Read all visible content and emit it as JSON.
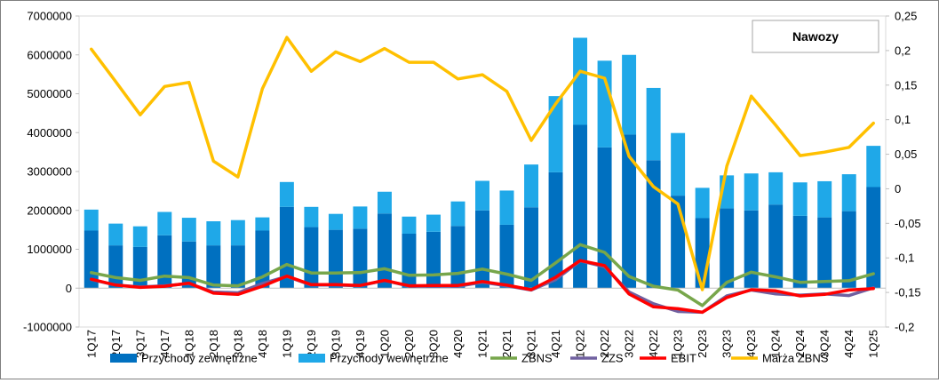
{
  "chart_data": {
    "type": "bar",
    "title": "Nawozy",
    "categories": [
      "1Q17",
      "2Q17",
      "3Q17",
      "4Q17",
      "1Q18",
      "2Q18",
      "3Q18",
      "4Q18",
      "1Q19",
      "2Q19",
      "3Q19",
      "4Q19",
      "1Q20",
      "2Q20",
      "3Q20",
      "4Q20",
      "1Q21",
      "2Q21",
      "3Q21",
      "4Q21",
      "1Q22",
      "2Q22",
      "3Q22",
      "4Q22",
      "1Q23",
      "2Q23",
      "3Q23",
      "4Q23",
      "1Q24",
      "2Q24",
      "3Q24",
      "4Q24",
      "1Q25"
    ],
    "y_left": {
      "min": -1000000,
      "max": 7000000,
      "ticks": [
        "-1000000",
        "0",
        "1000000",
        "2000000",
        "3000000",
        "4000000",
        "5000000",
        "6000000",
        "7000000"
      ]
    },
    "y_right": {
      "min": -0.2,
      "max": 0.25,
      "ticks": [
        "-0,2",
        "-0,15",
        "-0,1",
        "-0,05",
        "0",
        "0,05",
        "0,1",
        "0,15",
        "0,2",
        "0,25"
      ]
    },
    "legend_position": "bottom",
    "grid": false,
    "series": [
      {
        "name": "Przychody zewnętrzne",
        "kind": "stacked-bar",
        "axis": "left",
        "color": "#0070C0",
        "values": [
          1480000,
          1100000,
          1060000,
          1360000,
          1200000,
          1100000,
          1100000,
          1480000,
          2090000,
          1570000,
          1500000,
          1530000,
          1920000,
          1400000,
          1450000,
          1600000,
          2000000,
          1630000,
          2080000,
          2980000,
          4200000,
          3620000,
          3950000,
          3290000,
          2380000,
          1800000,
          2050000,
          2000000,
          2150000,
          1860000,
          1820000,
          1980000,
          2600000
        ]
      },
      {
        "name": "Przychody wewnętrzne",
        "kind": "stacked-bar",
        "axis": "left",
        "color": "#1FA8E8",
        "values": [
          540000,
          560000,
          530000,
          600000,
          610000,
          620000,
          650000,
          340000,
          640000,
          520000,
          410000,
          570000,
          560000,
          440000,
          440000,
          630000,
          760000,
          880000,
          1100000,
          1960000,
          2240000,
          2230000,
          2050000,
          1860000,
          1610000,
          780000,
          850000,
          950000,
          830000,
          860000,
          930000,
          950000,
          1060000
        ]
      },
      {
        "name": "ZBNS",
        "kind": "line",
        "axis": "left",
        "color": "#77A64B",
        "values": [
          400000,
          270000,
          200000,
          310000,
          270000,
          80000,
          60000,
          290000,
          610000,
          390000,
          390000,
          400000,
          500000,
          330000,
          340000,
          380000,
          490000,
          360000,
          200000,
          650000,
          1120000,
          920000,
          300000,
          50000,
          -50000,
          -450000,
          150000,
          410000,
          290000,
          150000,
          170000,
          190000,
          370000
        ]
      },
      {
        "name": "ZZS",
        "kind": "line",
        "axis": "left",
        "color": "#7060A0",
        "values": [
          220000,
          80000,
          30000,
          60000,
          120000,
          -100000,
          -120000,
          120000,
          300000,
          80000,
          80000,
          60000,
          200000,
          50000,
          50000,
          50000,
          150000,
          60000,
          -50000,
          220000,
          700000,
          550000,
          -100000,
          -400000,
          -600000,
          -620000,
          -200000,
          -50000,
          -150000,
          -180000,
          -150000,
          -190000,
          10000
        ]
      },
      {
        "name": "EBIT",
        "kind": "line",
        "axis": "left",
        "color": "#FF0000",
        "values": [
          230000,
          80000,
          20000,
          50000,
          130000,
          -130000,
          -160000,
          50000,
          310000,
          90000,
          90000,
          70000,
          200000,
          60000,
          70000,
          70000,
          170000,
          80000,
          -40000,
          280000,
          710000,
          580000,
          -150000,
          -480000,
          -530000,
          -620000,
          -240000,
          -40000,
          -70000,
          -200000,
          -160000,
          -50000,
          -10000
        ]
      },
      {
        "name": "Marża ZBNS",
        "kind": "line",
        "axis": "right",
        "color": "#FFC000",
        "values": [
          0.202,
          0.155,
          0.107,
          0.148,
          0.154,
          0.04,
          0.017,
          0.145,
          0.219,
          0.17,
          0.198,
          0.184,
          0.203,
          0.183,
          0.183,
          0.159,
          0.165,
          0.141,
          0.07,
          0.123,
          0.17,
          0.16,
          0.047,
          0.003,
          -0.022,
          -0.146,
          0.033,
          0.134,
          0.092,
          0.048,
          0.053,
          0.06,
          0.095
        ]
      }
    ]
  }
}
